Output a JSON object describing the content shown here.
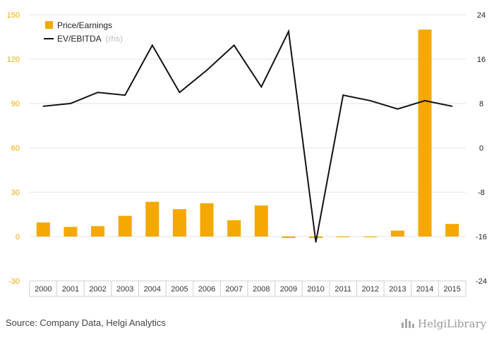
{
  "chart_data": {
    "type": "bar",
    "categories": [
      "2000",
      "2001",
      "2002",
      "2003",
      "2004",
      "2005",
      "2006",
      "2007",
      "2008",
      "2009",
      "2010",
      "2011",
      "2012",
      "2013",
      "2014",
      "2015"
    ],
    "series": [
      {
        "name": "Price/Earnings",
        "type": "bar",
        "axis": "left",
        "color": "#f5a800",
        "values": [
          9.5,
          6.5,
          7,
          14,
          23.5,
          18.5,
          22.5,
          11,
          21,
          -1,
          -1,
          -0.5,
          -0.5,
          4,
          140,
          8.5
        ]
      },
      {
        "name": "EV/EBITDA",
        "type": "line",
        "axis": "right",
        "color": "#111111",
        "values": [
          7.5,
          8,
          10,
          9.5,
          18.5,
          10,
          14,
          18.5,
          11,
          21,
          -17,
          9.5,
          8.5,
          7,
          8.5,
          7.5
        ]
      }
    ],
    "legend_suffix": "(rhs)",
    "y_left": {
      "lim": [
        -30,
        150
      ],
      "ticks": [
        -30,
        0,
        30,
        60,
        90,
        120,
        150
      ]
    },
    "y_right": {
      "lim": [
        -24,
        24
      ],
      "ticks": [
        -24,
        -16,
        -8,
        0,
        8,
        16,
        24
      ]
    },
    "grid": true,
    "legend_position": "top-left"
  },
  "footer": {
    "source": "Source: Company Data, Helgi Analytics",
    "logo": "HelgiLibrary"
  }
}
